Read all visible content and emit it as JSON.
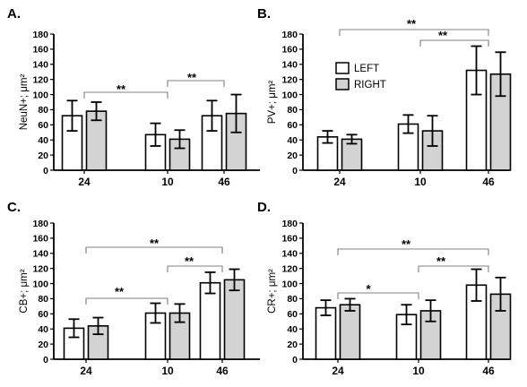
{
  "chart_data": [
    {
      "type": "bar",
      "panel_label": "A.",
      "ylabel": "NeuN+; μm²",
      "categories": [
        "24",
        "10",
        "46"
      ],
      "ylim": [
        0,
        180
      ],
      "yticks": [
        0,
        20,
        40,
        60,
        80,
        100,
        120,
        140,
        160,
        180
      ],
      "series": [
        {
          "name": "LEFT",
          "values": [
            72,
            47,
            72
          ],
          "errors": [
            20,
            15,
            20
          ]
        },
        {
          "name": "RIGHT",
          "values": [
            78,
            41,
            75
          ],
          "errors": [
            12,
            12,
            25
          ]
        }
      ],
      "significance": [
        {
          "from": "24",
          "to": "10",
          "label": "**"
        },
        {
          "from": "10",
          "to": "46",
          "label": "**"
        }
      ]
    },
    {
      "type": "bar",
      "panel_label": "B.",
      "ylabel": "PV+; μm²",
      "categories": [
        "24",
        "10",
        "46"
      ],
      "ylim": [
        0,
        180
      ],
      "yticks": [
        0,
        20,
        40,
        60,
        80,
        100,
        120,
        140,
        160,
        180
      ],
      "series": [
        {
          "name": "LEFT",
          "values": [
            44,
            61,
            132
          ],
          "errors": [
            8,
            12,
            32
          ]
        },
        {
          "name": "RIGHT",
          "values": [
            41,
            52,
            127
          ],
          "errors": [
            6,
            20,
            29
          ]
        }
      ],
      "significance": [
        {
          "from": "24",
          "to": "46",
          "label": "**"
        },
        {
          "from": "10",
          "to": "46",
          "label": "**"
        }
      ],
      "legend": {
        "position": "top-left",
        "entries": [
          "LEFT",
          "RIGHT"
        ]
      }
    },
    {
      "type": "bar",
      "panel_label": "C.",
      "ylabel": "CB+; μm²",
      "categories": [
        "24",
        "10",
        "46"
      ],
      "ylim": [
        0,
        180
      ],
      "yticks": [
        0,
        20,
        40,
        60,
        80,
        100,
        120,
        140,
        160,
        180
      ],
      "series": [
        {
          "name": "LEFT",
          "values": [
            41,
            61,
            101
          ],
          "errors": [
            12,
            13,
            14
          ]
        },
        {
          "name": "RIGHT",
          "values": [
            44,
            61,
            105
          ],
          "errors": [
            11,
            12,
            14
          ]
        }
      ],
      "significance": [
        {
          "from": "24",
          "to": "10",
          "label": "**"
        },
        {
          "from": "24",
          "to": "46",
          "label": "**"
        },
        {
          "from": "10",
          "to": "46",
          "label": "**"
        }
      ]
    },
    {
      "type": "bar",
      "panel_label": "D.",
      "ylabel": "CR+; μm²",
      "categories": [
        "24",
        "10",
        "46"
      ],
      "ylim": [
        0,
        180
      ],
      "yticks": [
        0,
        20,
        40,
        60,
        80,
        100,
        120,
        140,
        160,
        180
      ],
      "series": [
        {
          "name": "LEFT",
          "values": [
            68,
            59,
            98
          ],
          "errors": [
            10,
            13,
            21
          ]
        },
        {
          "name": "RIGHT",
          "values": [
            72,
            64,
            86
          ],
          "errors": [
            8,
            14,
            22
          ]
        }
      ],
      "significance": [
        {
          "from": "24",
          "to": "10",
          "label": "*"
        },
        {
          "from": "24",
          "to": "46",
          "label": "**"
        },
        {
          "from": "10",
          "to": "46",
          "label": "**"
        }
      ]
    }
  ],
  "colors": {
    "left_fill": "#ffffff",
    "right_fill": "#d3d3d3",
    "stroke": "#000000",
    "bracket": "#808080"
  }
}
